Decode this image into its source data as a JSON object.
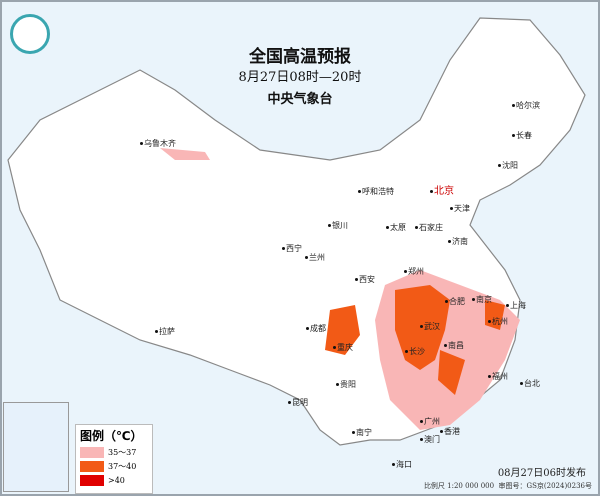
{
  "header": {
    "title": "全国高温预报",
    "period": "8月27日08时—20时",
    "issuer": "中央气象台"
  },
  "legend": {
    "title": "图例（℃）",
    "items": [
      {
        "label": "35～37",
        "color": "#f9b6b6"
      },
      {
        "label": "37～40",
        "color": "#f25a16"
      },
      {
        "label": ">40",
        "color": "#e00000"
      }
    ]
  },
  "cities": [
    {
      "name": "哈尔滨"
    },
    {
      "name": "长春"
    },
    {
      "name": "沈阳"
    },
    {
      "name": "乌鲁木齐"
    },
    {
      "name": "呼和浩特"
    },
    {
      "name": "北京",
      "capital": true
    },
    {
      "name": "天津"
    },
    {
      "name": "银川"
    },
    {
      "name": "太原"
    },
    {
      "name": "石家庄"
    },
    {
      "name": "济南"
    },
    {
      "name": "西宁"
    },
    {
      "name": "兰州"
    },
    {
      "name": "郑州"
    },
    {
      "name": "西安"
    },
    {
      "name": "合肥"
    },
    {
      "name": "南京"
    },
    {
      "name": "上海"
    },
    {
      "name": "成都"
    },
    {
      "name": "武汉"
    },
    {
      "name": "杭州"
    },
    {
      "name": "重庆"
    },
    {
      "name": "长沙"
    },
    {
      "name": "南昌"
    },
    {
      "name": "拉萨"
    },
    {
      "name": "贵阳"
    },
    {
      "name": "福州"
    },
    {
      "name": "台北"
    },
    {
      "name": "昆明"
    },
    {
      "name": "南宁"
    },
    {
      "name": "广州"
    },
    {
      "name": "香港"
    },
    {
      "name": "澳门"
    },
    {
      "name": "海口"
    }
  ],
  "footer": {
    "published": "08月27日06时发布",
    "scale": "比例尺 1:20 000 000",
    "map_no": "审图号：GS京(2024)0236号"
  }
}
